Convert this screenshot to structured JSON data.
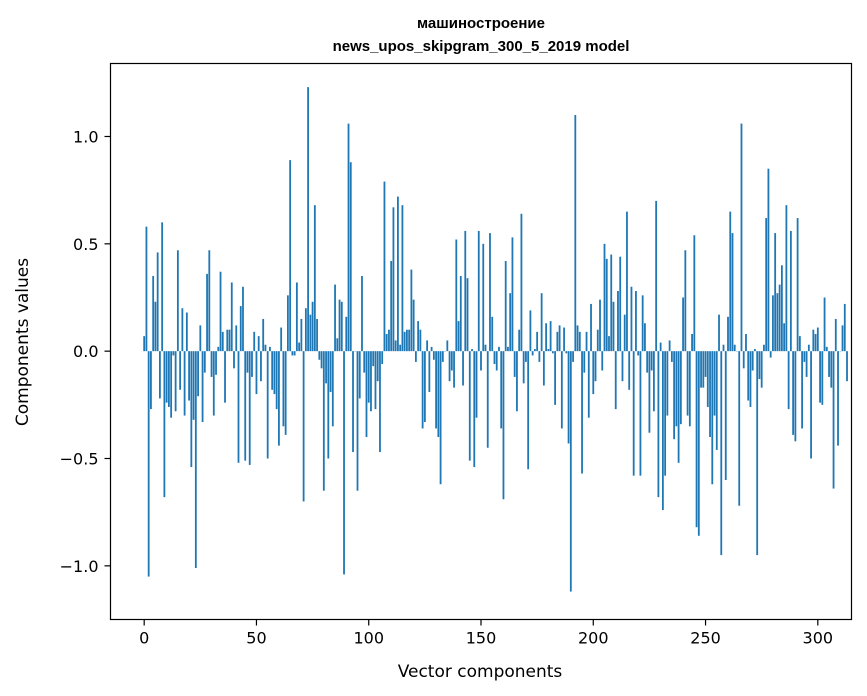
{
  "chart_data": {
    "type": "bar",
    "title_line1": "машиностроение",
    "title_line2": "news_upos_skipgram_300_5_2019 model",
    "xlabel": "Vector components",
    "ylabel": "Components values",
    "xlim": [
      -15,
      315
    ],
    "ylim": [
      -1.25,
      1.34
    ],
    "xticks": [
      0,
      50,
      100,
      150,
      200,
      250,
      300
    ],
    "xtick_labels": [
      "0",
      "50",
      "100",
      "150",
      "200",
      "250",
      "300"
    ],
    "yticks": [
      -1.0,
      -0.5,
      0.0,
      0.5,
      1.0
    ],
    "ytick_labels": [
      "−1.0",
      "−0.5",
      "0.0",
      "0.5",
      "1.0"
    ],
    "grid": false,
    "bar_color": "#1f77b4",
    "values": [
      0.07,
      0.58,
      -1.05,
      -0.27,
      0.35,
      0.23,
      0.46,
      -0.22,
      0.6,
      -0.68,
      -0.24,
      -0.26,
      -0.31,
      -0.02,
      -0.28,
      0.47,
      -0.18,
      0.2,
      -0.3,
      0.18,
      -0.23,
      -0.54,
      -0.32,
      -1.01,
      -0.21,
      0.12,
      -0.33,
      -0.1,
      0.36,
      0.47,
      -0.12,
      -0.3,
      -0.11,
      0.02,
      0.37,
      0.09,
      -0.24,
      0.1,
      0.1,
      0.32,
      -0.08,
      0.12,
      -0.52,
      0.21,
      0.3,
      -0.51,
      -0.1,
      -0.53,
      -0.12,
      0.09,
      -0.2,
      0.07,
      -0.14,
      0.15,
      0.03,
      -0.5,
      0.02,
      -0.18,
      -0.2,
      -0.27,
      -0.44,
      0.11,
      -0.35,
      -0.39,
      0.26,
      0.89,
      -0.02,
      -0.02,
      0.32,
      0.04,
      0.15,
      -0.7,
      0.2,
      1.23,
      0.17,
      0.23,
      0.68,
      0.15,
      -0.04,
      -0.08,
      -0.65,
      -0.15,
      -0.5,
      -0.19,
      -0.35,
      0.31,
      0.06,
      0.24,
      0.23,
      -1.04,
      0.16,
      1.06,
      0.88,
      -0.47,
      0.0,
      -0.65,
      -0.22,
      0.35,
      -0.1,
      -0.4,
      -0.24,
      -0.28,
      -0.07,
      -0.27,
      -0.14,
      -0.47,
      -0.06,
      0.79,
      0.08,
      0.1,
      0.42,
      0.67,
      0.05,
      0.72,
      0.03,
      0.68,
      0.09,
      0.1,
      0.1,
      0.38,
      0.24,
      -0.05,
      0.14,
      0.1,
      -0.36,
      -0.33,
      0.05,
      -0.19,
      0.02,
      -0.04,
      -0.36,
      -0.4,
      -0.62,
      -0.05,
      0.0,
      0.05,
      -0.14,
      -0.09,
      -0.17,
      0.52,
      0.14,
      0.35,
      -0.16,
      0.56,
      0.34,
      -0.51,
      0.01,
      -0.54,
      -0.31,
      0.56,
      -0.09,
      0.5,
      0.03,
      -0.45,
      0.55,
      0.16,
      -0.06,
      -0.09,
      0.02,
      -0.36,
      -0.69,
      0.42,
      0.02,
      0.27,
      0.53,
      -0.12,
      -0.28,
      0.1,
      0.64,
      -0.15,
      -0.05,
      -0.55,
      0.19,
      -0.02,
      0.01,
      0.09,
      -0.05,
      0.27,
      -0.16,
      0.13,
      0.01,
      0.14,
      -0.01,
      -0.25,
      0.09,
      0.12,
      -0.36,
      0.11,
      -0.01,
      -0.43,
      -1.12,
      -0.05,
      1.1,
      0.12,
      0.09,
      -0.57,
      -0.1,
      0.09,
      -0.31,
      0.22,
      -0.2,
      -0.14,
      0.1,
      0.24,
      -0.09,
      0.5,
      0.43,
      0.07,
      0.45,
      0.23,
      -0.27,
      0.28,
      0.44,
      -0.14,
      0.17,
      0.65,
      -0.18,
      0.3,
      -0.58,
      0.28,
      -0.02,
      -0.58,
      0.26,
      0.13,
      -0.1,
      -0.38,
      -0.09,
      -0.28,
      0.7,
      -0.68,
      0.04,
      -0.74,
      -0.58,
      -0.3,
      0.05,
      -0.05,
      -0.41,
      -0.35,
      -0.52,
      -0.34,
      0.25,
      0.47,
      -0.3,
      -0.35,
      0.08,
      0.54,
      -0.82,
      -0.86,
      -0.17,
      -0.17,
      -0.12,
      -0.26,
      -0.4,
      -0.62,
      -0.3,
      -0.46,
      0.17,
      -0.95,
      0.03,
      -0.6,
      0.16,
      0.65,
      0.55,
      0.03,
      0.0,
      -0.72,
      1.06,
      -0.08,
      0.08,
      -0.23,
      -0.26,
      -0.09,
      0.01,
      -0.95,
      -0.13,
      -0.17,
      0.03,
      0.62,
      0.85,
      -0.03,
      0.26,
      0.55,
      0.27,
      0.31,
      0.4,
      0.13,
      0.68,
      -0.27,
      0.56,
      -0.39,
      -0.42,
      0.62,
      0.07,
      -0.36,
      -0.05,
      -0.12,
      0.03,
      -0.5,
      0.1,
      0.08,
      0.11,
      -0.24,
      -0.25,
      0.25,
      0.02,
      -0.12,
      -0.17,
      -0.64,
      0.15,
      -0.44,
      0.0,
      0.12,
      0.22,
      -0.14
    ]
  }
}
